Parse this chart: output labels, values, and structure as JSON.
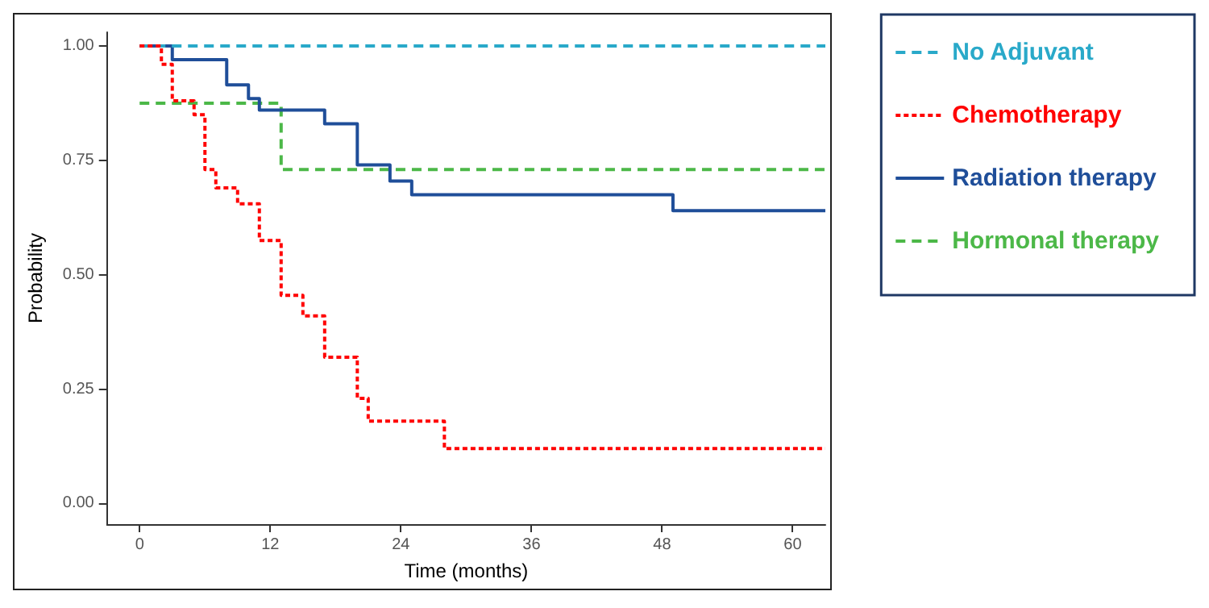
{
  "chart_data": {
    "type": "step",
    "xlabel": "Time (months)",
    "ylabel": "Probability",
    "xlim": [
      -3,
      63
    ],
    "xticks": [
      0,
      12,
      24,
      36,
      48,
      60
    ],
    "ylim": [
      -0.045,
      1.03
    ],
    "yticks": [
      {
        "value": 0,
        "label": "0.00"
      },
      {
        "value": 0.25,
        "label": "0.25"
      },
      {
        "value": 0.5,
        "label": "0.50"
      },
      {
        "value": 0.75,
        "label": "0.75"
      },
      {
        "value": 1,
        "label": "1.00"
      }
    ],
    "grid": false,
    "legend": "right",
    "series": [
      {
        "name": "No Adjuvant",
        "color": "#29a9c9",
        "line_style": "dashed",
        "x": [
          0,
          63
        ],
        "values": [
          1,
          1
        ]
      },
      {
        "name": "Chemotherapy",
        "color": "#ff0000",
        "line_style": "dotted",
        "x": [
          0,
          2,
          3,
          5,
          6,
          7,
          9,
          11,
          13,
          15,
          17,
          20,
          21,
          28,
          63
        ],
        "values": [
          1,
          0.96,
          0.88,
          0.85,
          0.73,
          0.69,
          0.655,
          0.575,
          0.455,
          0.41,
          0.32,
          0.23,
          0.18,
          0.12,
          0.12
        ]
      },
      {
        "name": "Radiation therapy",
        "color": "#1f4e99",
        "line_style": "solid",
        "x": [
          0,
          3,
          8,
          10,
          11,
          17,
          20,
          23,
          25,
          49,
          63
        ],
        "values": [
          1,
          0.97,
          0.915,
          0.885,
          0.86,
          0.83,
          0.74,
          0.705,
          0.675,
          0.64,
          0.64
        ]
      },
      {
        "name": "Hormonal therapy",
        "color": "#4cb848",
        "line_style": "dashed",
        "x": [
          0,
          13,
          63
        ],
        "values": [
          0.875,
          0.73,
          0.73
        ]
      }
    ]
  }
}
